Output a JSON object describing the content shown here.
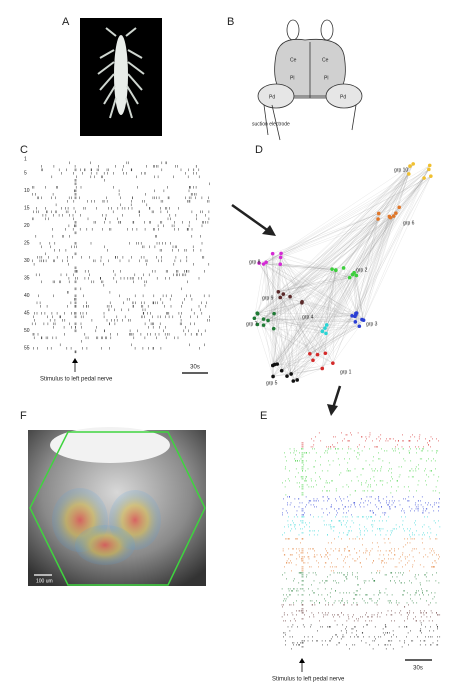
{
  "panels": {
    "a": "A",
    "b": "B",
    "c": "C",
    "d": "D",
    "e": "E",
    "f": "F"
  },
  "diagram_b": {
    "labels": [
      "Ce",
      "Ce",
      "Pl",
      "Pl",
      "Pd",
      "Pd"
    ],
    "electrode": "suction electrode"
  },
  "raster_c": {
    "row_labels": [
      "1",
      "5",
      "10",
      "15",
      "20",
      "25",
      "30",
      "35",
      "40",
      "45",
      "50",
      "55"
    ],
    "stimulus": "Stimulus to left pedal nerve",
    "scale": "30s"
  },
  "network_d": {
    "groups": [
      {
        "label": "grp 1",
        "color": "#d42a2a"
      },
      {
        "label": "grp 2",
        "color": "#3ccf3c"
      },
      {
        "label": "grp 3",
        "color": "#2a3fd4"
      },
      {
        "label": "grp 4",
        "color": "#2ad4d4"
      },
      {
        "label": "grp 5",
        "color": "#111111"
      },
      {
        "label": "grp 6",
        "color": "#e0772a"
      },
      {
        "label": "grp 7",
        "color": "#1f7a35"
      },
      {
        "label": "grp 8",
        "color": "#d42ad4"
      },
      {
        "label": "grp 9",
        "color": "#5a2a2a"
      },
      {
        "label": "grp 10",
        "color": "#f0c030"
      }
    ]
  },
  "raster_e": {
    "stimulus": "Stimulus to left pedal nerve",
    "scale": "30s"
  },
  "image_f": {
    "scale": "100 um"
  }
}
